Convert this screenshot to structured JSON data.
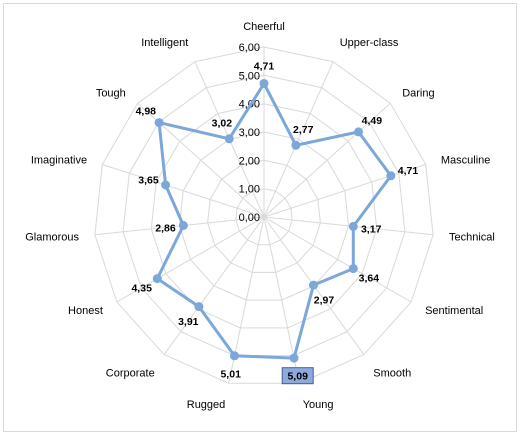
{
  "chart_data": {
    "type": "radar",
    "categories": [
      "Cheerful",
      "Upper-class",
      "Daring",
      "Masculine",
      "Technical",
      "Sentimental",
      "Smooth",
      "Young",
      "Rugged",
      "Corporate",
      "Honest",
      "Glamorous",
      "Imaginative",
      "Tough",
      "Intelligent"
    ],
    "series": [
      {
        "values": [
          4.71,
          2.77,
          4.49,
          4.71,
          3.17,
          3.64,
          2.97,
          5.09,
          5.01,
          3.91,
          4.35,
          2.86,
          3.65,
          4.98,
          3.02
        ],
        "value_labels": [
          "4,71",
          "2,77",
          "4,49",
          "4,71",
          "3,17",
          "3,64",
          "2,97",
          "5,09",
          "5,01",
          "3,91",
          "4,35",
          "2,86",
          "3,65",
          "4,98",
          "3,02"
        ]
      }
    ],
    "rmin": 0,
    "rmax": 6,
    "tick_values": [
      0,
      1,
      2,
      3,
      4,
      5,
      6
    ],
    "tick_labels": [
      "0,00",
      "1,00",
      "2,00",
      "3,00",
      "4,00",
      "5,00",
      "6,00"
    ],
    "grid": true,
    "highlighted_label_index": 7,
    "colors": {
      "series": "#7ba7d9",
      "grid": "#d9d9d9",
      "highlight_fill": "#8ea9db",
      "highlight_border": "#3f5f99"
    }
  }
}
